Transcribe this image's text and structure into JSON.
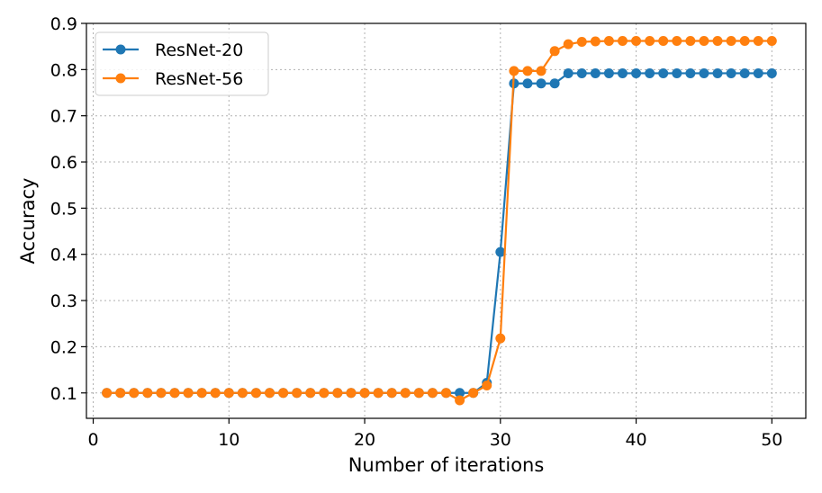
{
  "chart_data": {
    "type": "line",
    "title": "",
    "xlabel": "Number of iterations",
    "ylabel": "Accuracy",
    "xlim": [
      -0.5,
      52.5
    ],
    "ylim": [
      0.045,
      0.9
    ],
    "xticks": [
      0,
      10,
      20,
      30,
      40,
      50
    ],
    "xtick_labels": [
      "0",
      "10",
      "20",
      "30",
      "40",
      "50"
    ],
    "yticks": [
      0.1,
      0.2,
      0.3,
      0.4,
      0.5,
      0.6,
      0.7,
      0.8,
      0.9
    ],
    "ytick_labels": [
      "0.1",
      "0.2",
      "0.3",
      "0.4",
      "0.5",
      "0.6",
      "0.7",
      "0.8",
      "0.9"
    ],
    "grid": true,
    "legend_position": "top-left",
    "x": [
      1,
      2,
      3,
      4,
      5,
      6,
      7,
      8,
      9,
      10,
      11,
      12,
      13,
      14,
      15,
      16,
      17,
      18,
      19,
      20,
      21,
      22,
      23,
      24,
      25,
      26,
      27,
      28,
      29,
      30,
      31,
      32,
      33,
      34,
      35,
      36,
      37,
      38,
      39,
      40,
      41,
      42,
      43,
      44,
      45,
      46,
      47,
      48,
      49,
      50
    ],
    "series": [
      {
        "name": "ResNet-20",
        "color": "#1f77b4",
        "values": [
          0.1,
          0.1,
          0.1,
          0.1,
          0.1,
          0.1,
          0.1,
          0.1,
          0.1,
          0.1,
          0.1,
          0.1,
          0.1,
          0.1,
          0.1,
          0.1,
          0.1,
          0.1,
          0.1,
          0.1,
          0.1,
          0.1,
          0.1,
          0.1,
          0.1,
          0.1,
          0.1,
          0.1,
          0.122,
          0.405,
          0.77,
          0.77,
          0.77,
          0.77,
          0.792,
          0.792,
          0.792,
          0.792,
          0.792,
          0.792,
          0.792,
          0.792,
          0.792,
          0.792,
          0.792,
          0.792,
          0.792,
          0.792,
          0.792,
          0.792
        ]
      },
      {
        "name": "ResNet-56",
        "color": "#ff7f0e",
        "values": [
          0.1,
          0.1,
          0.1,
          0.1,
          0.1,
          0.1,
          0.1,
          0.1,
          0.1,
          0.1,
          0.1,
          0.1,
          0.1,
          0.1,
          0.1,
          0.1,
          0.1,
          0.1,
          0.1,
          0.1,
          0.1,
          0.1,
          0.1,
          0.1,
          0.1,
          0.1,
          0.084,
          0.1,
          0.116,
          0.218,
          0.797,
          0.797,
          0.797,
          0.84,
          0.855,
          0.86,
          0.861,
          0.862,
          0.862,
          0.862,
          0.862,
          0.862,
          0.862,
          0.862,
          0.862,
          0.862,
          0.862,
          0.862,
          0.862,
          0.862
        ]
      }
    ]
  }
}
